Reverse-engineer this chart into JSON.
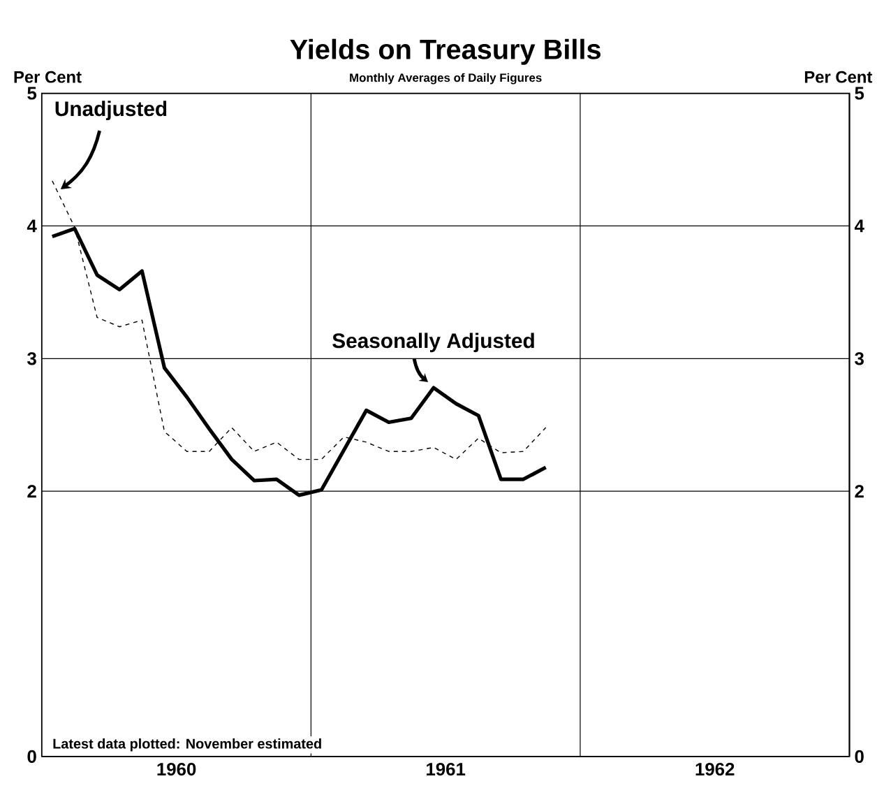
{
  "chart_data": {
    "type": "line",
    "title": "Yields on Treasury Bills",
    "subtitle": "Monthly Averages of Daily Figures",
    "ylabel": "Per Cent",
    "y2label": "Per Cent",
    "x": [
      "1960-01-15",
      "1960-02-15",
      "1960-03-15",
      "1960-04-15",
      "1960-05-15",
      "1960-06-15",
      "1960-07-15",
      "1960-08-15",
      "1960-09-15",
      "1960-10-15",
      "1960-11-15",
      "1960-12-15",
      "1961-01-15",
      "1961-02-15",
      "1961-03-15",
      "1961-04-15",
      "1961-05-15",
      "1961-06-15",
      "1961-07-15",
      "1961-08-15",
      "1961-09-15",
      "1961-10-15",
      "1961-11-15"
    ],
    "series": [
      {
        "name": "Seasonally Adjusted",
        "color": "#000000",
        "line_style": "solid",
        "values": [
          3.92,
          3.98,
          3.63,
          3.52,
          3.66,
          2.93,
          2.71,
          2.47,
          2.24,
          2.08,
          2.09,
          1.97,
          2.01,
          2.31,
          2.61,
          2.52,
          2.55,
          2.78,
          2.66,
          2.57,
          2.09,
          2.09,
          2.18
        ]
      },
      {
        "name": "Unadjusted",
        "color": "#000000",
        "line_style": "dashed",
        "values": [
          4.34,
          3.99,
          3.31,
          3.24,
          3.29,
          2.45,
          2.3,
          2.3,
          2.48,
          2.3,
          2.37,
          2.24,
          2.24,
          2.41,
          2.37,
          2.3,
          2.3,
          2.33,
          2.24,
          2.4,
          2.29,
          2.3,
          2.48
        ]
      }
    ],
    "xlim": [
      "1960-01-01",
      "1963-01-01"
    ],
    "xticks": [
      {
        "value": "1960-07-01",
        "label": "1960"
      },
      {
        "value": "1961-01-01",
        "label": null
      },
      {
        "value": "1961-07-01",
        "label": "1961"
      },
      {
        "value": "1962-01-01",
        "label": null
      },
      {
        "value": "1962-07-01",
        "label": "1962"
      }
    ],
    "ylim": [
      0,
      5
    ],
    "yticks": [
      0,
      2,
      3,
      4,
      5
    ],
    "y2lim": [
      0,
      5
    ],
    "y2ticks": [
      0,
      2,
      3,
      4,
      5
    ],
    "grid": true,
    "legend": false,
    "annotations": [
      "Latest data plotted: November estimated"
    ]
  }
}
